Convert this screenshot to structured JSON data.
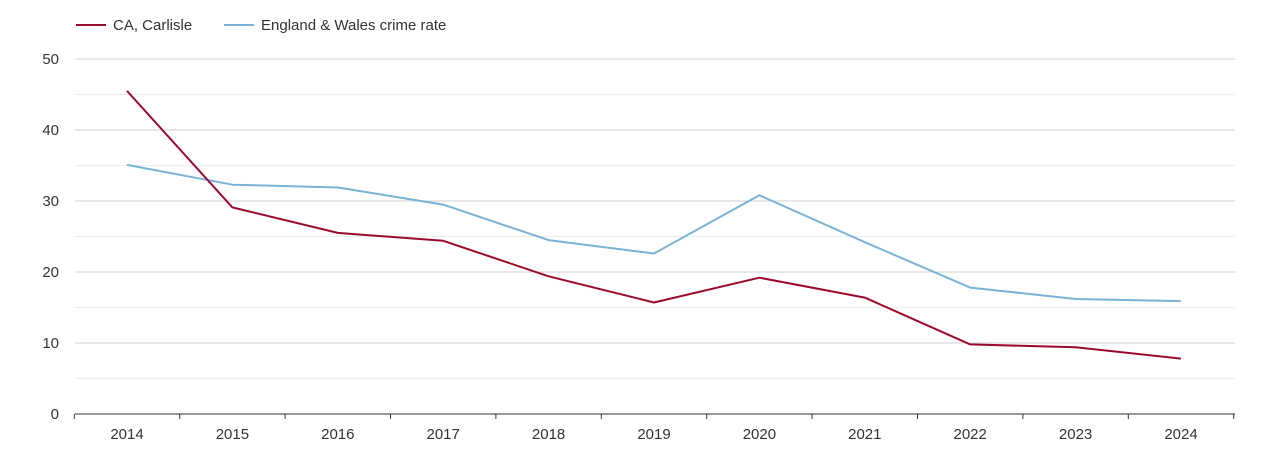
{
  "chart_data": {
    "type": "line",
    "title": "",
    "xlabel": "",
    "ylabel": "",
    "x": [
      "2014",
      "2015",
      "2016",
      "2017",
      "2018",
      "2019",
      "2020",
      "2021",
      "2022",
      "2023",
      "2024"
    ],
    "ylim": [
      0,
      50
    ],
    "yticks": [
      "0",
      "10",
      "20",
      "30",
      "40",
      "50"
    ],
    "grid": true,
    "legend_position": "top-left",
    "series": [
      {
        "name": "CA, Carlisle",
        "color": "#9b0a2e",
        "values": [
          45.5,
          29.1,
          25.5,
          24.4,
          19.4,
          15.7,
          19.2,
          16.4,
          9.8,
          9.4,
          7.8
        ]
      },
      {
        "name": "England & Wales crime rate",
        "color": "#7ab3d6",
        "values": [
          35.1,
          32.3,
          31.9,
          29.5,
          24.5,
          22.6,
          30.8,
          24.2,
          17.8,
          16.2,
          15.9
        ]
      }
    ]
  }
}
